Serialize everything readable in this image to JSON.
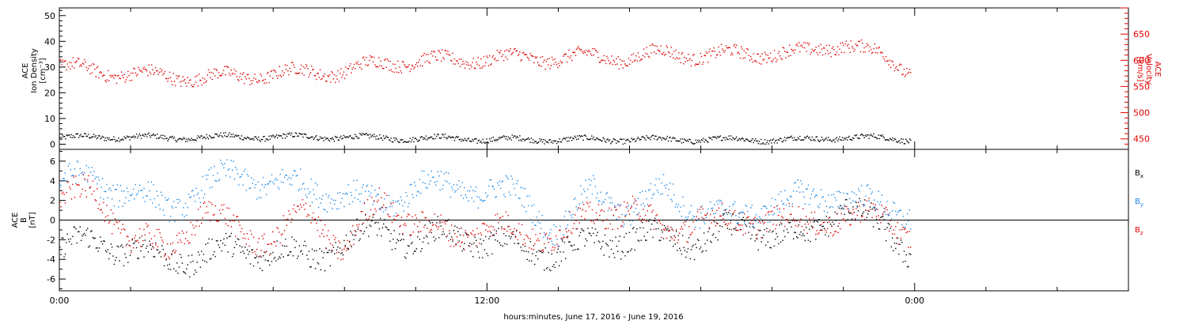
{
  "xaxis": {
    "label": "hours:minutes, June 17, 2016 - June 19, 2016",
    "ticks": [
      {
        "hours": 0,
        "label": "0:00"
      },
      {
        "hours": 12,
        "label": "12:00"
      },
      {
        "hours": 24,
        "label": "0:00"
      }
    ],
    "range_hours": [
      0,
      30
    ]
  },
  "chart_data": [
    {
      "type": "scatter",
      "panel": "plasma",
      "y_left": {
        "label_lines": [
          "ACE",
          "Ion Density",
          "[cm⁻³]"
        ],
        "range": [
          -2,
          53
        ],
        "ticks": [
          0,
          10,
          20,
          30,
          40,
          50
        ]
      },
      "y_right": {
        "label_lines": [
          "ACE",
          "Velocity",
          "[km/s]"
        ],
        "range": [
          430,
          700
        ],
        "ticks": [
          450,
          500,
          550,
          600,
          650
        ],
        "color": "#e00000"
      },
      "series": [
        {
          "axis": "left",
          "color": "#000000",
          "data_end_hours": 24,
          "points": [
            [
              0,
              2.5
            ],
            [
              1,
              3
            ],
            [
              2,
              3
            ],
            [
              3,
              2.5
            ],
            [
              4,
              3
            ],
            [
              5,
              3
            ],
            [
              6,
              3
            ],
            [
              7,
              3
            ],
            [
              8,
              3
            ],
            [
              9,
              2.5
            ],
            [
              10,
              2.5
            ],
            [
              11,
              2.5
            ],
            [
              12,
              2
            ],
            [
              13,
              2
            ],
            [
              14,
              2
            ],
            [
              15,
              2
            ],
            [
              16,
              2
            ],
            [
              17,
              2
            ],
            [
              18,
              2
            ],
            [
              19,
              2
            ],
            [
              20,
              2
            ],
            [
              21,
              2
            ],
            [
              22,
              3
            ],
            [
              23,
              2.5
            ],
            [
              23.9,
              2
            ]
          ]
        },
        {
          "axis": "right",
          "color": "#e00000",
          "data_start_hours": 0,
          "data_end_hours": 24,
          "points": [
            [
              0,
              590
            ],
            [
              1,
              580
            ],
            [
              2,
              575
            ],
            [
              3,
              570
            ],
            [
              4,
              568
            ],
            [
              5,
              570
            ],
            [
              6,
              575
            ],
            [
              7,
              578
            ],
            [
              8,
              580
            ],
            [
              9,
              595
            ],
            [
              10,
              600
            ],
            [
              11,
              600
            ],
            [
              12,
              605
            ],
            [
              13,
              605
            ],
            [
              14,
              605
            ],
            [
              15,
              608
            ],
            [
              16,
              605
            ],
            [
              17,
              615
            ],
            [
              18,
              610
            ],
            [
              19,
              612
            ],
            [
              20,
              615
            ],
            [
              21,
              615
            ],
            [
              22,
              635
            ],
            [
              23,
              610
            ],
            [
              23.9,
              580
            ]
          ]
        }
      ]
    },
    {
      "type": "scatter",
      "panel": "magnetic",
      "y_left": {
        "label_lines": [
          "ACE",
          "B",
          "[nT]"
        ],
        "range": [
          -7.2,
          7.2
        ],
        "ticks": [
          -6,
          -4,
          -2,
          0,
          2,
          4,
          6
        ]
      },
      "zero_line": true,
      "series": [
        {
          "name": "Bx",
          "label_main": "B",
          "label_sub": "x",
          "color": "#000000",
          "points": [
            [
              0,
              -3
            ],
            [
              1,
              -2
            ],
            [
              2,
              -3
            ],
            [
              3,
              -4
            ],
            [
              4,
              -3.5
            ],
            [
              5,
              -3
            ],
            [
              6,
              -3
            ],
            [
              7,
              -4
            ],
            [
              8,
              -2
            ],
            [
              9,
              -1
            ],
            [
              10,
              -2
            ],
            [
              11,
              -1.5
            ],
            [
              12,
              -2
            ],
            [
              13,
              -3
            ],
            [
              14,
              -3
            ],
            [
              15,
              -2.5
            ],
            [
              16,
              -1.5
            ],
            [
              17,
              -2
            ],
            [
              18,
              -2
            ],
            [
              19,
              -1
            ],
            [
              20,
              -1
            ],
            [
              21,
              -2
            ],
            [
              22,
              2
            ],
            [
              23,
              -1
            ],
            [
              23.9,
              -3
            ]
          ]
        },
        {
          "name": "By",
          "label_main": "B",
          "label_sub": "y",
          "color": "#1e88e5",
          "points": [
            [
              0,
              4
            ],
            [
              1,
              4
            ],
            [
              2,
              3
            ],
            [
              3,
              1
            ],
            [
              4,
              3.5
            ],
            [
              5,
              4.5
            ],
            [
              6,
              4
            ],
            [
              7,
              3
            ],
            [
              8,
              3
            ],
            [
              9,
              1
            ],
            [
              10,
              4
            ],
            [
              11,
              3
            ],
            [
              12,
              3.5
            ],
            [
              13,
              2
            ],
            [
              14,
              -1
            ],
            [
              15,
              3
            ],
            [
              16,
              1
            ],
            [
              17,
              3
            ],
            [
              18,
              1
            ],
            [
              19,
              0
            ],
            [
              20,
              2
            ],
            [
              21,
              2
            ],
            [
              22,
              3
            ],
            [
              23,
              1
            ],
            [
              23.9,
              1
            ]
          ]
        },
        {
          "name": "Bz",
          "label_main": "B",
          "label_sub": "z",
          "color": "#e00000",
          "points": [
            [
              0,
              2
            ],
            [
              1,
              3
            ],
            [
              2,
              -2
            ],
            [
              3,
              -3
            ],
            [
              4,
              1
            ],
            [
              5,
              -1
            ],
            [
              6,
              -2
            ],
            [
              7,
              1
            ],
            [
              8,
              -3
            ],
            [
              9,
              2
            ],
            [
              10,
              0
            ],
            [
              11,
              -2
            ],
            [
              12,
              0
            ],
            [
              13,
              -2
            ],
            [
              14,
              -1
            ],
            [
              15,
              0
            ],
            [
              16,
              2
            ],
            [
              17,
              -2
            ],
            [
              18,
              1
            ],
            [
              19,
              -1
            ],
            [
              20,
              1
            ],
            [
              21,
              -1
            ],
            [
              22,
              1
            ],
            [
              23,
              0
            ],
            [
              23.9,
              -1
            ]
          ]
        }
      ]
    }
  ]
}
